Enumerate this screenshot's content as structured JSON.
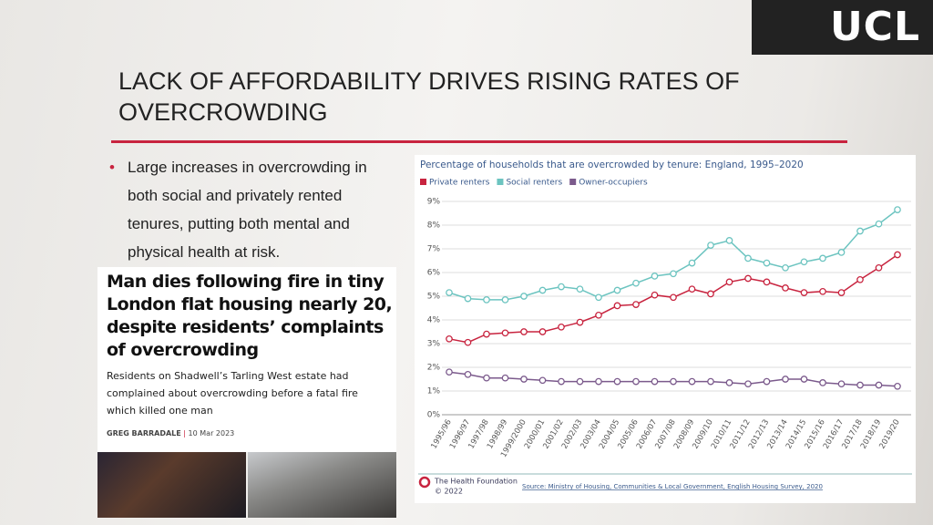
{
  "logo": "UCL",
  "title": "LACK OF AFFORDABILITY DRIVES RISING RATES OF OVERCROWDING",
  "bullet": "Large increases in overcrowding in both social and privately rented tenures, putting both mental and physical health at risk.",
  "news": {
    "headline": "Man dies following fire in tiny London flat housing nearly 20, despite residents’ complaints of overcrowding",
    "standfirst": "Residents on Shadwell’s Tarling West estate had complained about overcrowding before a fatal fire which killed one man",
    "author": "GREG BARRADALE",
    "date": "10 Mar 2023"
  },
  "chart_data": {
    "type": "line",
    "title": "Percentage of households that are overcrowded by tenure: England, 1995–2020",
    "categories": [
      "1995/96",
      "1996/97",
      "1997/98",
      "1998/99",
      "1999/2000",
      "2000/01",
      "2001/02",
      "2002/03",
      "2003/04",
      "2004/05",
      "2005/06",
      "2006/07",
      "2007/08",
      "2008/09",
      "2009/10",
      "2010/11",
      "2011/12",
      "2012/13",
      "2013/14",
      "2014/15",
      "2015/16",
      "2016/17",
      "2017/18",
      "2018/19",
      "2019/20"
    ],
    "series": [
      {
        "name": "Private renters",
        "color": "#c8243f",
        "values": [
          3.2,
          3.05,
          3.4,
          3.45,
          3.5,
          3.5,
          3.7,
          3.9,
          4.2,
          4.6,
          4.65,
          5.05,
          4.95,
          5.3,
          5.1,
          5.6,
          5.75,
          5.6,
          5.35,
          5.15,
          5.2,
          5.15,
          5.7,
          6.2,
          6.75
        ]
      },
      {
        "name": "Social renters",
        "color": "#6cc4c0",
        "values": [
          5.15,
          4.9,
          4.85,
          4.85,
          5.0,
          5.25,
          5.4,
          5.3,
          4.95,
          5.25,
          5.55,
          5.85,
          5.95,
          6.4,
          7.15,
          7.35,
          6.6,
          6.4,
          6.2,
          6.45,
          6.6,
          6.85,
          7.75,
          8.05,
          8.65
        ]
      },
      {
        "name": "Owner-occupiers",
        "color": "#7b5a8c",
        "values": [
          1.8,
          1.7,
          1.55,
          1.55,
          1.5,
          1.45,
          1.4,
          1.4,
          1.4,
          1.4,
          1.4,
          1.4,
          1.4,
          1.4,
          1.4,
          1.35,
          1.3,
          1.4,
          1.5,
          1.5,
          1.35,
          1.3,
          1.25,
          1.25,
          1.2
        ]
      }
    ],
    "ylim": [
      0,
      9
    ],
    "yticks": [
      {
        "value": 0,
        "label": "0%"
      },
      {
        "value": 1,
        "label": "1%"
      },
      {
        "value": 2,
        "label": "2%"
      },
      {
        "value": 3,
        "label": "3%"
      },
      {
        "value": 4,
        "label": "4%"
      },
      {
        "value": 5,
        "label": "5%"
      },
      {
        "value": 6,
        "label": "6%"
      },
      {
        "value": 7,
        "label": "7%"
      },
      {
        "value": 8,
        "label": "8%"
      },
      {
        "value": 9,
        "label": "9%"
      }
    ],
    "grid": true,
    "legend": "top-left",
    "publisher": "The Health Foundation",
    "copyright": "© 2022",
    "source": "Source: Ministry of Housing, Communities & Local Government, English Housing Survey, 2020"
  }
}
